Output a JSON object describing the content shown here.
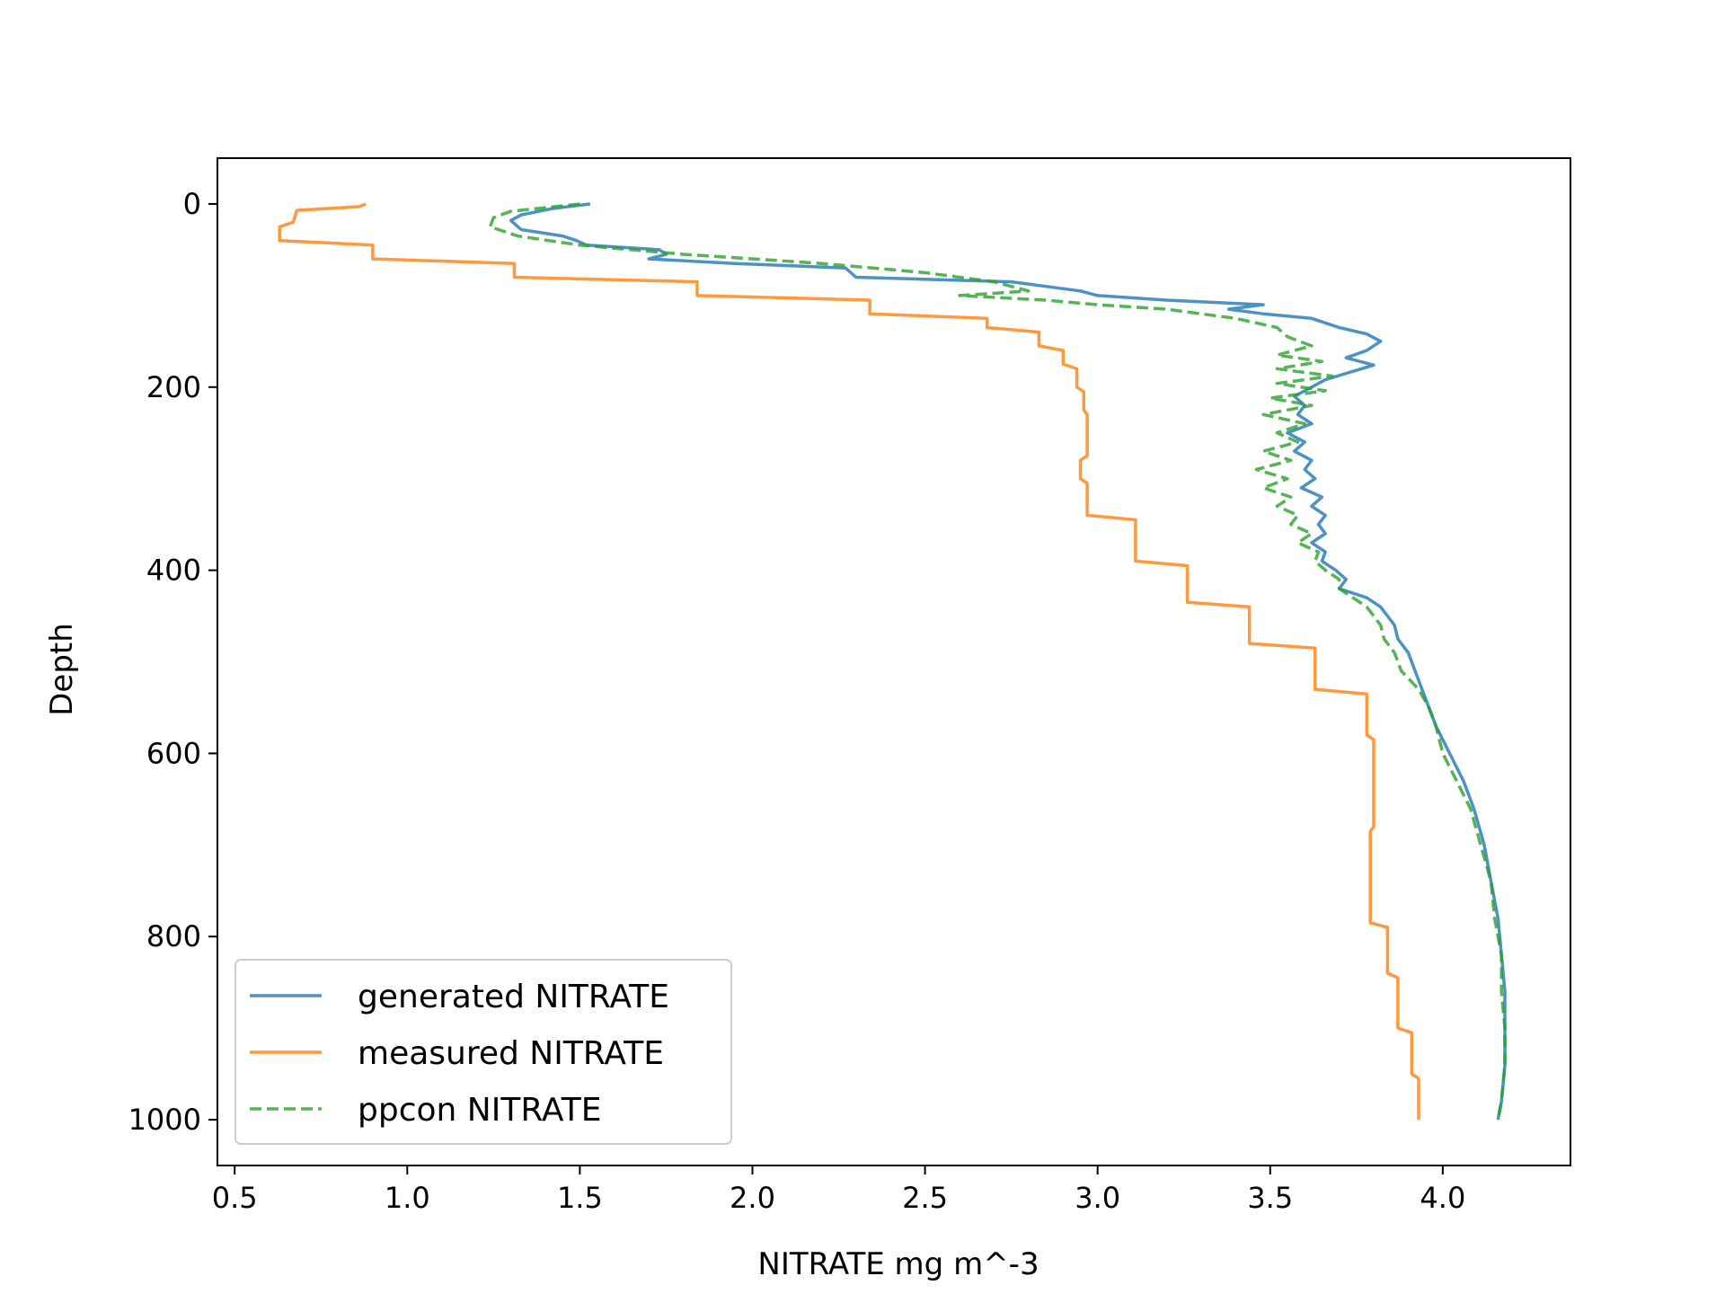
{
  "chart_data": {
    "type": "line",
    "title": "",
    "xlabel": "NITRATE mg m^-3",
    "ylabel": "Depth",
    "xlim": [
      0.45,
      4.37
    ],
    "ylim": [
      1050,
      -50
    ],
    "y_inverted": true,
    "xticks": [
      0.5,
      1.0,
      1.5,
      2.0,
      2.5,
      3.0,
      3.5,
      4.0
    ],
    "xtick_labels": [
      "0.5",
      "1.0",
      "1.5",
      "2.0",
      "2.5",
      "3.0",
      "3.5",
      "4.0"
    ],
    "yticks": [
      0,
      200,
      400,
      600,
      800,
      1000
    ],
    "ytick_labels": [
      "0",
      "200",
      "400",
      "600",
      "800",
      "1000"
    ],
    "grid": false,
    "legend_position": "lower-left",
    "series": [
      {
        "name": "generated NITRATE",
        "color": "#1f77b4",
        "style": "solid",
        "points": [
          [
            1.53,
            0
          ],
          [
            1.42,
            5
          ],
          [
            1.33,
            12
          ],
          [
            1.3,
            18
          ],
          [
            1.33,
            28
          ],
          [
            1.45,
            35
          ],
          [
            1.49,
            40
          ],
          [
            1.52,
            45
          ],
          [
            1.73,
            50
          ],
          [
            1.75,
            55
          ],
          [
            1.7,
            60
          ],
          [
            1.95,
            65
          ],
          [
            2.27,
            70
          ],
          [
            2.3,
            80
          ],
          [
            2.75,
            85
          ],
          [
            2.85,
            90
          ],
          [
            2.95,
            95
          ],
          [
            3.0,
            100
          ],
          [
            3.2,
            105
          ],
          [
            3.48,
            110
          ],
          [
            3.38,
            115
          ],
          [
            3.48,
            120
          ],
          [
            3.62,
            125
          ],
          [
            3.7,
            135
          ],
          [
            3.78,
            142
          ],
          [
            3.82,
            150
          ],
          [
            3.78,
            160
          ],
          [
            3.72,
            168
          ],
          [
            3.8,
            176
          ],
          [
            3.72,
            185
          ],
          [
            3.66,
            192
          ],
          [
            3.62,
            200
          ],
          [
            3.57,
            210
          ],
          [
            3.6,
            220
          ],
          [
            3.58,
            230
          ],
          [
            3.62,
            240
          ],
          [
            3.55,
            250
          ],
          [
            3.6,
            260
          ],
          [
            3.57,
            270
          ],
          [
            3.62,
            280
          ],
          [
            3.6,
            290
          ],
          [
            3.63,
            300
          ],
          [
            3.59,
            310
          ],
          [
            3.65,
            320
          ],
          [
            3.62,
            330
          ],
          [
            3.66,
            340
          ],
          [
            3.64,
            350
          ],
          [
            3.66,
            360
          ],
          [
            3.62,
            370
          ],
          [
            3.66,
            380
          ],
          [
            3.65,
            390
          ],
          [
            3.69,
            400
          ],
          [
            3.72,
            410
          ],
          [
            3.7,
            420
          ],
          [
            3.78,
            430
          ],
          [
            3.82,
            440
          ],
          [
            3.84,
            450
          ],
          [
            3.86,
            460
          ],
          [
            3.87,
            475
          ],
          [
            3.9,
            490
          ],
          [
            3.92,
            510
          ],
          [
            3.94,
            530
          ],
          [
            3.96,
            550
          ],
          [
            3.98,
            570
          ],
          [
            4.02,
            600
          ],
          [
            4.06,
            630
          ],
          [
            4.09,
            660
          ],
          [
            4.12,
            700
          ],
          [
            4.14,
            740
          ],
          [
            4.16,
            780
          ],
          [
            4.17,
            820
          ],
          [
            4.18,
            860
          ],
          [
            4.18,
            900
          ],
          [
            4.18,
            940
          ],
          [
            4.17,
            980
          ],
          [
            4.16,
            1000
          ]
        ]
      },
      {
        "name": "measured NITRATE",
        "color": "#ff7f0e",
        "style": "solid",
        "points": [
          [
            0.88,
            0
          ],
          [
            0.86,
            3
          ],
          [
            0.68,
            7
          ],
          [
            0.67,
            20
          ],
          [
            0.63,
            25
          ],
          [
            0.63,
            40
          ],
          [
            0.9,
            45
          ],
          [
            0.9,
            60
          ],
          [
            1.31,
            65
          ],
          [
            1.31,
            80
          ],
          [
            1.84,
            85
          ],
          [
            1.84,
            100
          ],
          [
            2.34,
            105
          ],
          [
            2.34,
            120
          ],
          [
            2.68,
            125
          ],
          [
            2.68,
            135
          ],
          [
            2.83,
            140
          ],
          [
            2.83,
            155
          ],
          [
            2.9,
            160
          ],
          [
            2.9,
            175
          ],
          [
            2.94,
            180
          ],
          [
            2.94,
            200
          ],
          [
            2.96,
            205
          ],
          [
            2.96,
            225
          ],
          [
            2.97,
            230
          ],
          [
            2.97,
            275
          ],
          [
            2.95,
            280
          ],
          [
            2.95,
            300
          ],
          [
            2.97,
            305
          ],
          [
            2.97,
            340
          ],
          [
            3.11,
            345
          ],
          [
            3.11,
            390
          ],
          [
            3.26,
            395
          ],
          [
            3.26,
            435
          ],
          [
            3.44,
            440
          ],
          [
            3.44,
            480
          ],
          [
            3.63,
            485
          ],
          [
            3.63,
            530
          ],
          [
            3.78,
            535
          ],
          [
            3.78,
            580
          ],
          [
            3.8,
            585
          ],
          [
            3.8,
            680
          ],
          [
            3.79,
            685
          ],
          [
            3.79,
            785
          ],
          [
            3.84,
            790
          ],
          [
            3.84,
            840
          ],
          [
            3.87,
            845
          ],
          [
            3.87,
            900
          ],
          [
            3.91,
            905
          ],
          [
            3.91,
            950
          ],
          [
            3.93,
            955
          ],
          [
            3.93,
            1000
          ]
        ]
      },
      {
        "name": "ppcon NITRATE",
        "color": "#2ca02c",
        "style": "dashed",
        "points": [
          [
            1.5,
            0
          ],
          [
            1.3,
            8
          ],
          [
            1.25,
            15
          ],
          [
            1.24,
            25
          ],
          [
            1.32,
            35
          ],
          [
            1.5,
            45
          ],
          [
            1.8,
            55
          ],
          [
            2.2,
            65
          ],
          [
            2.5,
            75
          ],
          [
            2.7,
            85
          ],
          [
            2.8,
            95
          ],
          [
            2.6,
            100
          ],
          [
            2.85,
            105
          ],
          [
            3.0,
            110
          ],
          [
            3.2,
            115
          ],
          [
            3.4,
            125
          ],
          [
            3.52,
            135
          ],
          [
            3.55,
            145
          ],
          [
            3.62,
            155
          ],
          [
            3.52,
            165
          ],
          [
            3.65,
            172
          ],
          [
            3.52,
            180
          ],
          [
            3.68,
            188
          ],
          [
            3.52,
            196
          ],
          [
            3.66,
            204
          ],
          [
            3.5,
            212
          ],
          [
            3.62,
            220
          ],
          [
            3.48,
            230
          ],
          [
            3.6,
            240
          ],
          [
            3.52,
            250
          ],
          [
            3.58,
            260
          ],
          [
            3.48,
            270
          ],
          [
            3.56,
            280
          ],
          [
            3.46,
            290
          ],
          [
            3.55,
            300
          ],
          [
            3.48,
            310
          ],
          [
            3.56,
            320
          ],
          [
            3.52,
            330
          ],
          [
            3.58,
            340
          ],
          [
            3.56,
            350
          ],
          [
            3.62,
            360
          ],
          [
            3.58,
            370
          ],
          [
            3.64,
            380
          ],
          [
            3.63,
            390
          ],
          [
            3.66,
            400
          ],
          [
            3.7,
            410
          ],
          [
            3.7,
            420
          ],
          [
            3.74,
            430
          ],
          [
            3.78,
            440
          ],
          [
            3.8,
            450
          ],
          [
            3.82,
            460
          ],
          [
            3.83,
            475
          ],
          [
            3.86,
            490
          ],
          [
            3.88,
            510
          ],
          [
            3.93,
            530
          ],
          [
            3.96,
            550
          ],
          [
            3.98,
            570
          ],
          [
            4.0,
            600
          ],
          [
            4.04,
            630
          ],
          [
            4.08,
            660
          ],
          [
            4.11,
            700
          ],
          [
            4.14,
            740
          ],
          [
            4.15,
            780
          ],
          [
            4.17,
            820
          ],
          [
            4.17,
            860
          ],
          [
            4.18,
            900
          ],
          [
            4.18,
            940
          ],
          [
            4.17,
            980
          ],
          [
            4.16,
            1000
          ]
        ]
      }
    ]
  }
}
